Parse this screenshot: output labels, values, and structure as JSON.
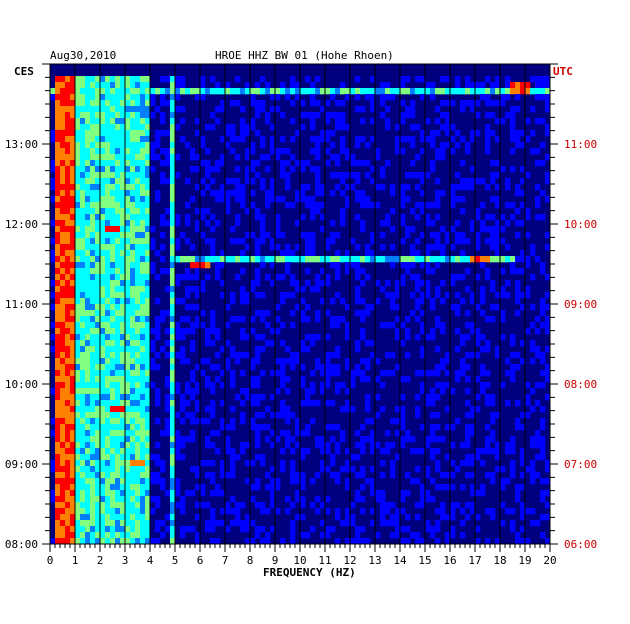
{
  "chart_data": {
    "type": "heatmap",
    "date": "Aug30,2010",
    "title": "HROE HHZ BW 01 (Hohe Rhoen)",
    "left_zone": "CES",
    "right_zone": "UTC",
    "xlabel": "FREQUENCY (HZ)",
    "xlim": [
      0,
      20
    ],
    "x_ticks": [
      "0",
      "1",
      "2",
      "3",
      "4",
      "5",
      "6",
      "7",
      "8",
      "9",
      "10",
      "11",
      "12",
      "13",
      "14",
      "15",
      "16",
      "17",
      "18",
      "19",
      "20"
    ],
    "y_left_ticks": [
      "08:00",
      "09:00",
      "10:00",
      "11:00",
      "12:00",
      "13:00"
    ],
    "y_right_ticks": [
      "06:00",
      "07:00",
      "08:00",
      "09:00",
      "10:00",
      "11:00"
    ],
    "time_range_ces": [
      "08:00",
      "13:50"
    ],
    "background_level": "low",
    "features": [
      {
        "desc": "strong continuous energy band",
        "freq_hz": [
          0.3,
          0.9
        ],
        "time": "08:00-13:50",
        "level": "high"
      },
      {
        "desc": "moderate low-frequency energy",
        "freq_hz": [
          0.9,
          4.0
        ],
        "time": "08:00-13:50",
        "level": "medium"
      },
      {
        "desc": "narrow line",
        "freq_hz": [
          4.9,
          5.0
        ],
        "time": "08:00-13:50",
        "level": "medium"
      },
      {
        "desc": "horizontal band",
        "freq_hz": [
          0,
          20
        ],
        "time": "13:38",
        "level": "medium"
      },
      {
        "desc": "horizontal band",
        "freq_hz": [
          5.0,
          18.5
        ],
        "time": "11:32",
        "level": "medium"
      },
      {
        "desc": "peak",
        "freq_hz": [
          17.2
        ],
        "time": "11:33",
        "level": "high"
      },
      {
        "desc": "peak",
        "freq_hz": [
          6.0
        ],
        "time": "11:30",
        "level": "high"
      },
      {
        "desc": "peak",
        "freq_hz": [
          18.8
        ],
        "time": "13:42",
        "level": "high"
      },
      {
        "desc": "peak",
        "freq_hz": [
          2.5
        ],
        "time": "11:57",
        "level": "high"
      },
      {
        "desc": "peak",
        "freq_hz": [
          3.5
        ],
        "time": "08:59",
        "level": "high"
      },
      {
        "desc": "peak",
        "freq_hz": [
          2.7
        ],
        "time": "09:42",
        "level": "high"
      }
    ],
    "colormap": [
      "#00007f",
      "#0000ff",
      "#0080ff",
      "#00ffff",
      "#80ff80",
      "#ffff00",
      "#ff8000",
      "#ff0000"
    ],
    "colors": {
      "ces_label": "#000000",
      "utc_label": "#cc0000",
      "background": "#00007f",
      "grid": "#000000"
    }
  }
}
